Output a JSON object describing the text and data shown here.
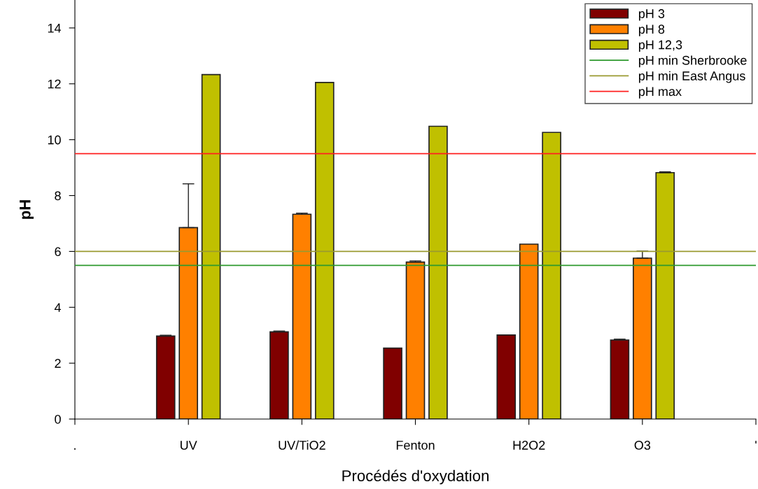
{
  "chart_data": {
    "type": "bar",
    "xlabel": "Procédés d'oxydation",
    "ylabel": "pH",
    "categories": [
      ".",
      "UV",
      "UV/TiO2",
      "Fenton",
      "H2O2",
      "O3",
      "'"
    ],
    "series": [
      {
        "name": "pH 3",
        "color": "#800000",
        "values": [
          null,
          2.97,
          3.12,
          2.54,
          3.01,
          2.83,
          null
        ],
        "errors": [
          null,
          [
            2.97,
            3.0
          ],
          [
            3.12,
            3.15
          ],
          null,
          null,
          [
            2.83,
            2.86
          ],
          null
        ]
      },
      {
        "name": "pH 8",
        "color": "#ff8000",
        "values": [
          null,
          6.85,
          7.33,
          5.62,
          6.26,
          5.76,
          null
        ],
        "errors": [
          null,
          [
            6.85,
            8.42
          ],
          [
            7.33,
            7.37
          ],
          [
            5.62,
            5.66
          ],
          null,
          [
            5.76,
            6.01
          ],
          null
        ]
      },
      {
        "name": "pH 12,3",
        "color": "#c0c000",
        "values": [
          null,
          12.33,
          12.05,
          10.48,
          10.26,
          8.82,
          null
        ],
        "errors": [
          null,
          null,
          null,
          null,
          null,
          [
            8.82,
            8.85
          ],
          null
        ]
      }
    ],
    "ref_lines": [
      {
        "axis": "y",
        "value": 5.5,
        "label": "pH min Sherbrooke",
        "color": "#2e9a2e"
      },
      {
        "axis": "y",
        "value": 6,
        "label": "pH min East Angus",
        "color": "#9a9a30"
      },
      {
        "axis": "y",
        "value": 9.5,
        "label": "pH max",
        "color": "#ff2020"
      }
    ],
    "ylim": [
      0,
      15
    ],
    "yticks": [
      0,
      2,
      4,
      6,
      8,
      10,
      12,
      14
    ],
    "grid": false,
    "legend": "top right"
  }
}
